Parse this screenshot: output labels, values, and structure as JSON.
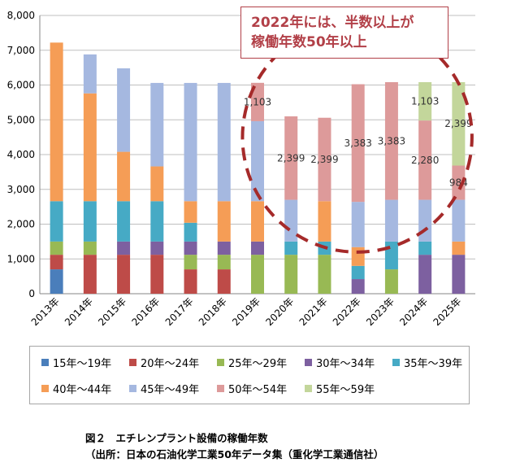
{
  "chart_data": {
    "type": "bar",
    "stacked": true,
    "categories": [
      "2013年",
      "2014年",
      "2015年",
      "2016年",
      "2017年",
      "2018年",
      "2019年",
      "2020年",
      "2021年",
      "2022年",
      "2023年",
      "2024年",
      "2025年"
    ],
    "y_ticks": [
      "0",
      "1,000",
      "2,000",
      "3,000",
      "4,000",
      "5,000",
      "6,000",
      "7,000",
      "8,000"
    ],
    "ylim": [
      0,
      8000
    ],
    "grid": true,
    "legend_position": "bottom",
    "series": [
      {
        "name": "15年～19年",
        "color": "#4a7ebb",
        "values": [
          700,
          0,
          0,
          0,
          0,
          0,
          0,
          0,
          0,
          0,
          0,
          0,
          0
        ]
      },
      {
        "name": "20年～24年",
        "color": "#be4b48",
        "values": [
          420,
          1120,
          1120,
          1120,
          700,
          700,
          0,
          0,
          0,
          0,
          0,
          0,
          0
        ]
      },
      {
        "name": "25年～29年",
        "color": "#98b954",
        "values": [
          380,
          380,
          0,
          0,
          420,
          420,
          1120,
          1120,
          1120,
          0,
          700,
          0,
          0
        ]
      },
      {
        "name": "30年～34年",
        "color": "#7d60a0",
        "values": [
          0,
          0,
          380,
          380,
          380,
          380,
          380,
          0,
          0,
          420,
          0,
          1120,
          1120
        ]
      },
      {
        "name": "35年～39年",
        "color": "#46aac5",
        "values": [
          1160,
          1160,
          1160,
          1160,
          540,
          0,
          0,
          380,
          380,
          380,
          800,
          380,
          0
        ]
      },
      {
        "name": "40年～44年",
        "color": "#f59d56",
        "values": [
          4560,
          3100,
          1420,
          1000,
          620,
          1160,
          1160,
          0,
          1160,
          540,
          0,
          0,
          380
        ]
      },
      {
        "name": "45年～49年",
        "color": "#a5b8e0",
        "values": [
          0,
          1120,
          2400,
          2400,
          3400,
          3400,
          2300,
          1200,
          0,
          1300,
          1200,
          1200,
          1200
        ]
      },
      {
        "name": "50年～54年",
        "color": "#dd9a9a",
        "values": [
          0,
          0,
          0,
          0,
          0,
          0,
          1103,
          2399,
          2399,
          3383,
          3383,
          2280,
          984
        ]
      },
      {
        "name": "55年～59年",
        "color": "#c3d69b",
        "values": [
          0,
          0,
          0,
          0,
          0,
          0,
          0,
          0,
          0,
          0,
          0,
          1103,
          2399
        ]
      }
    ],
    "data_labels": [
      {
        "category": "2019年",
        "series": "50年～54年",
        "text": "1,103"
      },
      {
        "category": "2020年",
        "series": "50年～54年",
        "text": "2,399"
      },
      {
        "category": "2021年",
        "series": "50年～54年",
        "text": "2,399"
      },
      {
        "category": "2022年",
        "series": "50年～54年",
        "text": "3,383"
      },
      {
        "category": "2023年",
        "series": "50年～54年",
        "text": "3,383"
      },
      {
        "category": "2024年",
        "series": "55年～59年",
        "text": "1,103"
      },
      {
        "category": "2024年",
        "series": "50年～54年",
        "text": "2,280"
      },
      {
        "category": "2025年",
        "series": "55年～59年",
        "text": "2,399"
      },
      {
        "category": "2025年",
        "series": "50年～54年",
        "text": "984"
      }
    ]
  },
  "callout": {
    "line1": "2022年には、半数以上が",
    "line2": "稼働年数50年以上"
  },
  "caption": {
    "line1": "図２　エチレンプラント設備の稼働年数",
    "line2": "（出所：日本の石油化学工業50年データ集（重化学工業通信社）"
  }
}
